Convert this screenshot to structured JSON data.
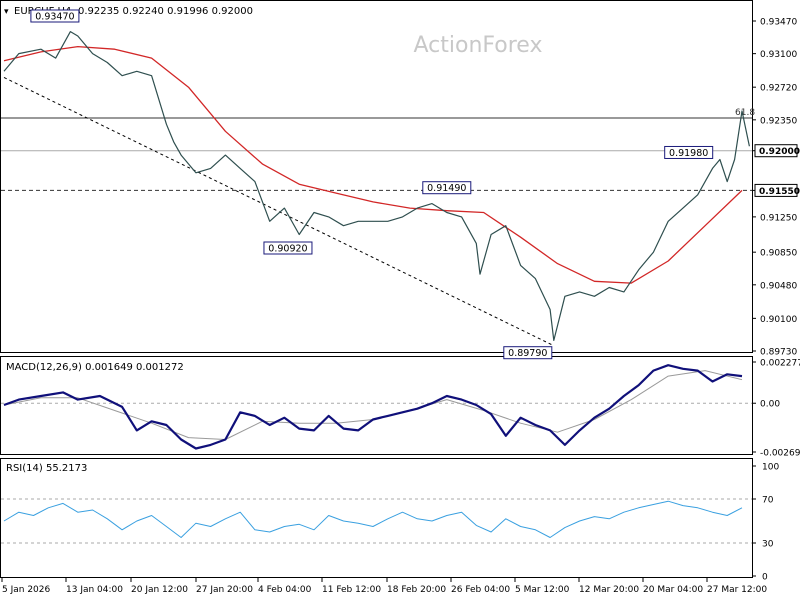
{
  "header": {
    "symbol": "EURCHF,H4",
    "ohlc": "0.92235 0.92240 0.91996 0.92000"
  },
  "watermark": "ActionForex",
  "colors": {
    "price": "#2f4f4f",
    "ma": "#d22727",
    "macd": "#10107a",
    "signal": "#9a9a9a",
    "rsi": "#3aa0e0",
    "grid": "#d8d8d8",
    "axis": "#000000",
    "label_border": "#1a1a7a"
  },
  "chart_data": [
    {
      "type": "line",
      "panel": "price",
      "title": "EURCHF,H4",
      "x_ticks": [
        "5 Jan 2026",
        "13 Jan 04:00",
        "20 Jan 12:00",
        "27 Jan 20:00",
        "4 Feb 04:00",
        "11 Feb 12:00",
        "18 Feb 20:00",
        "26 Feb 04:00",
        "5 Mar 12:00",
        "12 Mar 20:00",
        "20 Mar 04:00",
        "27 Mar 12:00"
      ],
      "y_ticks": [
        "0.93470",
        "0.93100",
        "0.92720",
        "0.92350",
        "0.92000",
        "0.91550",
        "0.91250",
        "0.90850",
        "0.90480",
        "0.90100",
        "0.89730"
      ],
      "ylim": [
        0.8973,
        0.9347
      ],
      "current_price_label": "0.92000",
      "level_label": "0.91550",
      "fib_label": "61.8",
      "levels": [
        {
          "value": 0.9237,
          "style": "solid"
        },
        {
          "value": 0.92,
          "style": "solid-light"
        },
        {
          "value": 0.9155,
          "style": "dashed"
        }
      ],
      "annotations": [
        {
          "text": "0.93470",
          "x": 0.05,
          "y": 0.9347
        },
        {
          "text": "0.90920",
          "x": 0.42,
          "y": 0.9092
        },
        {
          "text": "0.91490",
          "x": 0.6,
          "y": 0.9149
        },
        {
          "text": "0.89790",
          "x": 0.745,
          "y": 0.8979
        },
        {
          "text": "0.91980",
          "x": 0.963,
          "y": 0.9198
        }
      ],
      "trendline": [
        [
          0.0,
          0.9283
        ],
        [
          0.745,
          0.8979
        ]
      ],
      "series": [
        {
          "role": "price",
          "x": [
            0.0,
            0.02,
            0.05,
            0.07,
            0.09,
            0.1,
            0.12,
            0.14,
            0.16,
            0.18,
            0.2,
            0.22,
            0.23,
            0.24,
            0.26,
            0.28,
            0.3,
            0.32,
            0.34,
            0.36,
            0.38,
            0.4,
            0.42,
            0.44,
            0.46,
            0.48,
            0.5,
            0.52,
            0.54,
            0.56,
            0.58,
            0.6,
            0.62,
            0.64,
            0.645,
            0.66,
            0.68,
            0.7,
            0.72,
            0.74,
            0.745,
            0.76,
            0.78,
            0.8,
            0.82,
            0.84,
            0.86,
            0.88,
            0.9,
            0.92,
            0.94,
            0.96,
            0.97,
            0.98,
            0.99,
            1.0,
            1.01
          ],
          "y": [
            0.929,
            0.931,
            0.9315,
            0.9305,
            0.9335,
            0.933,
            0.931,
            0.93,
            0.9285,
            0.929,
            0.9285,
            0.923,
            0.921,
            0.9195,
            0.9175,
            0.918,
            0.9195,
            0.918,
            0.9165,
            0.912,
            0.9135,
            0.9105,
            0.913,
            0.9125,
            0.9115,
            0.912,
            0.912,
            0.912,
            0.9125,
            0.9135,
            0.914,
            0.913,
            0.9125,
            0.9095,
            0.906,
            0.9105,
            0.9115,
            0.907,
            0.9055,
            0.902,
            0.8985,
            0.9035,
            0.904,
            0.9035,
            0.9045,
            0.904,
            0.9065,
            0.9085,
            0.912,
            0.9135,
            0.915,
            0.918,
            0.919,
            0.9165,
            0.919,
            0.9245,
            0.9205
          ]
        },
        {
          "role": "ma",
          "x": [
            0.0,
            0.05,
            0.1,
            0.15,
            0.2,
            0.25,
            0.3,
            0.35,
            0.4,
            0.45,
            0.5,
            0.55,
            0.6,
            0.65,
            0.7,
            0.75,
            0.8,
            0.85,
            0.9,
            0.95,
            1.0
          ],
          "y": [
            0.9302,
            0.9312,
            0.9318,
            0.9315,
            0.9305,
            0.9272,
            0.9222,
            0.9185,
            0.9162,
            0.9152,
            0.9142,
            0.9135,
            0.9132,
            0.913,
            0.9102,
            0.9072,
            0.9052,
            0.905,
            0.9075,
            0.9115,
            0.9155
          ]
        }
      ]
    },
    {
      "type": "line",
      "panel": "macd",
      "title": "MACD(12,26,9) 0.001649 0.001272",
      "y_ticks": [
        "0.002277",
        "0.00",
        "-0.002693"
      ],
      "ylim": [
        -0.002693,
        0.002277
      ],
      "series": [
        {
          "role": "macd",
          "x": [
            0.0,
            0.02,
            0.05,
            0.08,
            0.1,
            0.13,
            0.16,
            0.18,
            0.2,
            0.22,
            0.24,
            0.26,
            0.28,
            0.3,
            0.32,
            0.34,
            0.36,
            0.38,
            0.4,
            0.42,
            0.44,
            0.46,
            0.48,
            0.5,
            0.52,
            0.54,
            0.56,
            0.58,
            0.6,
            0.62,
            0.64,
            0.66,
            0.68,
            0.7,
            0.72,
            0.74,
            0.76,
            0.78,
            0.8,
            0.82,
            0.84,
            0.86,
            0.88,
            0.9,
            0.92,
            0.94,
            0.96,
            0.98,
            1.0
          ],
          "y": [
            -0.0001,
            0.0002,
            0.0004,
            0.0006,
            0.0002,
            0.0004,
            -0.0002,
            -0.0015,
            -0.001,
            -0.0012,
            -0.002,
            -0.0025,
            -0.0023,
            -0.002,
            -0.0005,
            -0.0007,
            -0.0012,
            -0.0008,
            -0.0014,
            -0.0015,
            -0.0007,
            -0.0014,
            -0.0015,
            -0.0009,
            -0.0007,
            -0.0005,
            -0.0003,
            0.0,
            0.0004,
            0.0002,
            -0.0001,
            -0.0006,
            -0.0018,
            -0.0008,
            -0.0012,
            -0.0015,
            -0.0023,
            -0.0015,
            -0.0008,
            -0.0003,
            0.0004,
            0.001,
            0.0018,
            0.0021,
            0.0019,
            0.0018,
            0.0012,
            0.0016,
            0.0015
          ]
        },
        {
          "role": "signal",
          "x": [
            0.0,
            0.05,
            0.1,
            0.15,
            0.2,
            0.25,
            0.3,
            0.35,
            0.4,
            0.45,
            0.5,
            0.55,
            0.6,
            0.65,
            0.7,
            0.75,
            0.8,
            0.85,
            0.9,
            0.95,
            1.0
          ],
          "y": [
            -0.0001,
            0.0003,
            0.0003,
            -0.0004,
            -0.0011,
            -0.0019,
            -0.002,
            -0.001,
            -0.0011,
            -0.0011,
            -0.0009,
            -0.0004,
            0.0002,
            -0.0004,
            -0.0011,
            -0.0016,
            -0.0009,
            0.0002,
            0.0015,
            0.0018,
            0.0013
          ]
        }
      ]
    },
    {
      "type": "line",
      "panel": "rsi",
      "title": "RSI(14) 55.2173",
      "y_ticks": [
        "100",
        "70",
        "30",
        "0"
      ],
      "ylim": [
        0,
        100
      ],
      "levels": [
        70,
        30
      ],
      "series": [
        {
          "role": "rsi",
          "x": [
            0.0,
            0.02,
            0.04,
            0.06,
            0.08,
            0.1,
            0.12,
            0.14,
            0.16,
            0.18,
            0.2,
            0.22,
            0.24,
            0.26,
            0.28,
            0.3,
            0.32,
            0.34,
            0.36,
            0.38,
            0.4,
            0.42,
            0.44,
            0.46,
            0.48,
            0.5,
            0.52,
            0.54,
            0.56,
            0.58,
            0.6,
            0.62,
            0.64,
            0.66,
            0.68,
            0.7,
            0.72,
            0.74,
            0.76,
            0.78,
            0.8,
            0.82,
            0.84,
            0.86,
            0.88,
            0.9,
            0.92,
            0.94,
            0.96,
            0.98,
            1.0
          ],
          "y": [
            50,
            58,
            55,
            62,
            66,
            58,
            60,
            52,
            42,
            50,
            55,
            45,
            35,
            48,
            45,
            52,
            58,
            42,
            40,
            45,
            47,
            42,
            55,
            50,
            48,
            45,
            52,
            58,
            52,
            50,
            55,
            58,
            46,
            40,
            52,
            45,
            42,
            35,
            44,
            50,
            54,
            52,
            58,
            62,
            65,
            68,
            64,
            62,
            58,
            55,
            62
          ]
        }
      ]
    }
  ]
}
